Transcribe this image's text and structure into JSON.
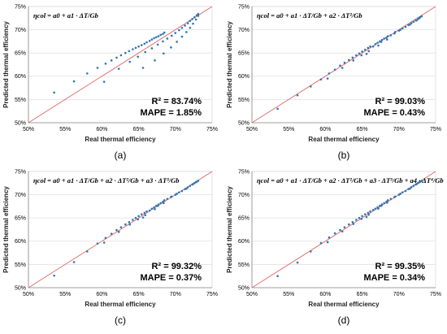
{
  "chart_data": [
    {
      "type": "scatter",
      "panel": "(a)",
      "equation": "ηcol = a0 + a1 · ΔT/Gb",
      "r2_text": "R² = 83.74%",
      "mape_text": "MAPE = 1.85%",
      "xlabel": "Real thermal efficiency",
      "ylabel": "Predicted thermal efficiency",
      "xlim": [
        50,
        75
      ],
      "ylim": [
        50,
        75
      ],
      "x_ticks": [
        "50%",
        "55%",
        "60%",
        "65%",
        "70%",
        "75%"
      ],
      "y_ticks": [
        "50%",
        "55%",
        "60%",
        "65%",
        "70%",
        "75%"
      ],
      "grid": true,
      "point_color": "#2e75b6",
      "line_color": "#e06666",
      "series": [
        {
          "x": [
            53.5,
            56.2,
            58.0,
            59.4,
            60.5,
            61.3,
            62.0,
            62.6,
            63.2,
            63.7,
            64.2,
            64.6,
            65.0,
            65.4,
            65.8,
            66.1,
            66.5,
            66.8,
            67.1,
            67.4,
            67.7,
            68.0,
            68.3,
            68.5,
            60.3,
            62.3,
            63.8,
            64.9,
            65.9,
            66.8,
            67.6,
            68.3,
            68.9,
            69.5,
            70.0,
            70.5,
            70.9,
            71.3,
            71.7,
            72.0,
            72.3,
            72.6,
            72.9,
            73.1,
            65.6,
            67.2,
            68.4,
            69.4,
            70.2,
            70.9,
            71.5,
            72.0,
            72.4,
            72.8,
            73.1
          ],
          "y": [
            56.5,
            58.9,
            60.6,
            61.8,
            62.7,
            63.4,
            64.0,
            64.5,
            65.0,
            65.4,
            65.8,
            66.1,
            66.4,
            66.7,
            67.0,
            67.3,
            67.6,
            67.9,
            68.2,
            68.4,
            68.6,
            68.9,
            69.1,
            69.4,
            58.8,
            61.6,
            63.1,
            64.2,
            65.2,
            66.0,
            66.8,
            67.5,
            68.1,
            68.7,
            69.3,
            69.9,
            70.4,
            70.9,
            71.4,
            71.9,
            72.3,
            72.7,
            73.1,
            73.4,
            61.8,
            63.4,
            64.9,
            66.2,
            67.4,
            68.5,
            69.5,
            70.4,
            71.3,
            72.2,
            73.0
          ]
        }
      ]
    },
    {
      "type": "scatter",
      "panel": "(b)",
      "equation": "ηcol = a0 + a1 · ΔT/Gb + a2 · ΔT²/Gb",
      "r2_text": "R² = 99.03%",
      "mape_text": "MAPE = 0.43%",
      "xlabel": "Real thermal efficiency",
      "ylabel": "Predicted thermal efficiency",
      "xlim": [
        50,
        75
      ],
      "ylim": [
        50,
        75
      ],
      "x_ticks": [
        "50%",
        "55%",
        "60%",
        "65%",
        "70%",
        "75%"
      ],
      "y_ticks": [
        "50%",
        "55%",
        "60%",
        "65%",
        "70%",
        "75%"
      ],
      "grid": true,
      "point_color": "#2e75b6",
      "line_color": "#e06666",
      "series": [
        {
          "x": [
            53.5,
            56.2,
            58.0,
            59.4,
            60.3,
            60.5,
            61.3,
            62.0,
            62.3,
            62.6,
            63.2,
            63.7,
            63.8,
            64.2,
            64.6,
            64.9,
            65.0,
            65.4,
            65.6,
            65.8,
            65.9,
            66.1,
            66.5,
            66.8,
            67.1,
            67.2,
            67.4,
            67.6,
            67.7,
            68.0,
            68.3,
            68.4,
            68.5,
            68.9,
            69.4,
            69.5,
            70.0,
            70.2,
            70.5,
            70.9,
            71.3,
            71.5,
            71.7,
            72.0,
            72.3,
            72.4,
            72.6,
            72.8,
            72.9,
            73.1
          ],
          "y": [
            53.0,
            55.9,
            57.8,
            59.3,
            59.5,
            60.6,
            61.4,
            62.3,
            61.8,
            62.9,
            63.5,
            64.0,
            63.4,
            64.5,
            64.9,
            64.5,
            65.3,
            65.7,
            64.8,
            66.1,
            65.4,
            66.4,
            66.4,
            66.9,
            67.2,
            66.6,
            67.5,
            67.4,
            67.8,
            68.1,
            68.3,
            67.9,
            68.6,
            68.8,
            69.2,
            69.5,
            69.8,
            70.0,
            70.3,
            70.6,
            71.0,
            71.1,
            71.4,
            71.7,
            72.0,
            72.0,
            72.3,
            72.5,
            72.7,
            72.9
          ]
        }
      ]
    },
    {
      "type": "scatter",
      "panel": "(c)",
      "equation": "ηcol = a0 + a1 · ΔT/Gb + a2 · ΔT²/Gb + a3 · ΔT³/Gb",
      "r2_text": "R² = 99.32%",
      "mape_text": "MAPE = 0.37%",
      "xlabel": "Real thermal efficiency",
      "ylabel": "Predicted thermal efficiency",
      "xlim": [
        50,
        75
      ],
      "ylim": [
        50,
        75
      ],
      "x_ticks": [
        "50%",
        "55%",
        "60%",
        "65%",
        "70%",
        "75%"
      ],
      "y_ticks": [
        "50%",
        "55%",
        "60%",
        "65%",
        "70%",
        "75%"
      ],
      "grid": true,
      "point_color": "#2e75b6",
      "line_color": "#e06666",
      "series": [
        {
          "x": [
            53.5,
            56.2,
            58.0,
            59.4,
            60.3,
            60.5,
            61.3,
            62.0,
            62.3,
            62.6,
            63.2,
            63.7,
            63.8,
            64.2,
            64.6,
            64.9,
            65.0,
            65.4,
            65.6,
            65.8,
            65.9,
            66.1,
            66.5,
            66.8,
            67.1,
            67.2,
            67.4,
            67.6,
            67.7,
            68.0,
            68.3,
            68.4,
            68.5,
            68.9,
            69.4,
            69.5,
            70.0,
            70.2,
            70.5,
            70.9,
            71.3,
            71.5,
            71.7,
            72.0,
            72.3,
            72.4,
            72.6,
            72.8,
            72.9,
            73.1
          ],
          "y": [
            52.6,
            55.5,
            57.8,
            59.5,
            59.7,
            60.7,
            61.6,
            62.4,
            62.0,
            63.0,
            63.6,
            64.1,
            63.6,
            64.6,
            65.0,
            64.7,
            65.4,
            65.8,
            65.1,
            66.1,
            65.6,
            66.4,
            66.6,
            67.0,
            67.3,
            66.9,
            67.6,
            67.6,
            67.9,
            68.2,
            68.5,
            68.2,
            68.8,
            69.1,
            69.5,
            69.6,
            70.0,
            70.2,
            70.5,
            70.8,
            71.2,
            71.3,
            71.6,
            71.9,
            72.2,
            72.3,
            72.5,
            72.7,
            72.8,
            73.0
          ]
        }
      ]
    },
    {
      "type": "scatter",
      "panel": "(d)",
      "equation": "ηcol = a0 + a1 · ΔT/Gb + a2 · ΔT²/Gb + a3 · ΔT³/Gb + a4 · ΔT⁴/Gb",
      "r2_text": "R² = 99.35%",
      "mape_text": "MAPE = 0.34%",
      "xlabel": "Real thermal efficiency",
      "ylabel": "Predicted thermal efficiency",
      "xlim": [
        50,
        75
      ],
      "ylim": [
        50,
        75
      ],
      "x_ticks": [
        "50%",
        "55%",
        "60%",
        "65%",
        "70%",
        "75%"
      ],
      "y_ticks": [
        "50%",
        "55%",
        "60%",
        "65%",
        "70%",
        "75%"
      ],
      "grid": true,
      "point_color": "#2e75b6",
      "line_color": "#e06666",
      "series": [
        {
          "x": [
            53.5,
            56.2,
            58.0,
            59.4,
            60.3,
            60.5,
            61.3,
            62.0,
            62.3,
            62.6,
            63.2,
            63.7,
            63.8,
            64.2,
            64.6,
            64.9,
            65.0,
            65.4,
            65.6,
            65.8,
            65.9,
            66.1,
            66.5,
            66.8,
            67.1,
            67.2,
            67.4,
            67.6,
            67.7,
            68.0,
            68.3,
            68.4,
            68.5,
            68.9,
            69.4,
            69.5,
            70.0,
            70.2,
            70.5,
            70.9,
            71.3,
            71.5,
            71.7,
            72.0,
            72.3,
            72.4,
            72.6,
            72.8,
            72.9,
            73.1
          ],
          "y": [
            52.5,
            55.4,
            57.8,
            59.6,
            59.8,
            60.8,
            61.7,
            62.4,
            62.1,
            63.0,
            63.6,
            64.1,
            63.7,
            64.6,
            65.0,
            64.8,
            65.4,
            65.8,
            65.2,
            66.1,
            65.7,
            66.4,
            66.7,
            67.0,
            67.3,
            67.0,
            67.6,
            67.6,
            67.9,
            68.2,
            68.5,
            68.3,
            68.8,
            69.1,
            69.5,
            69.6,
            70.0,
            70.2,
            70.5,
            70.8,
            71.2,
            71.3,
            71.6,
            71.9,
            72.2,
            72.3,
            72.5,
            72.7,
            72.8,
            73.0
          ]
        }
      ]
    }
  ]
}
